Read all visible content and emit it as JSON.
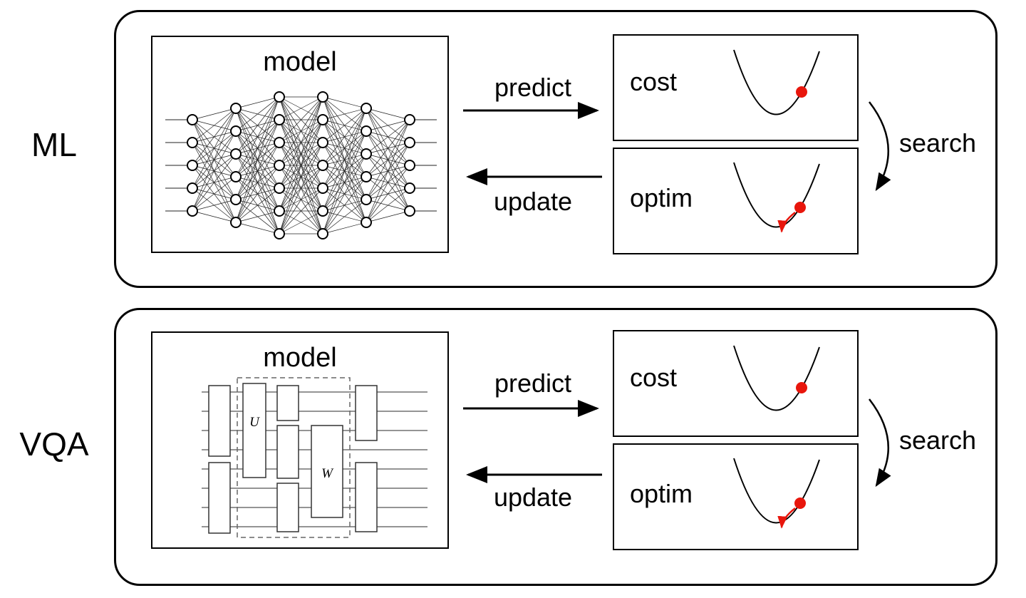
{
  "panels": {
    "ml": {
      "label": "ML",
      "model": {
        "title": "model"
      },
      "predict_label": "predict",
      "update_label": "update",
      "cost": {
        "label": "cost"
      },
      "optim": {
        "label": "optim"
      },
      "search_label": "search"
    },
    "vqa": {
      "label": "VQA",
      "model": {
        "title": "model",
        "gate_u": "U",
        "gate_w": "W"
      },
      "predict_label": "predict",
      "update_label": "update",
      "cost": {
        "label": "cost"
      },
      "optim": {
        "label": "optim"
      },
      "search_label": "search"
    }
  },
  "figures": {
    "neural_network": {
      "layers": [
        5,
        6,
        7,
        7,
        6,
        5
      ]
    },
    "colors": {
      "marker_red": "#e8160c",
      "line": "#000000"
    }
  }
}
